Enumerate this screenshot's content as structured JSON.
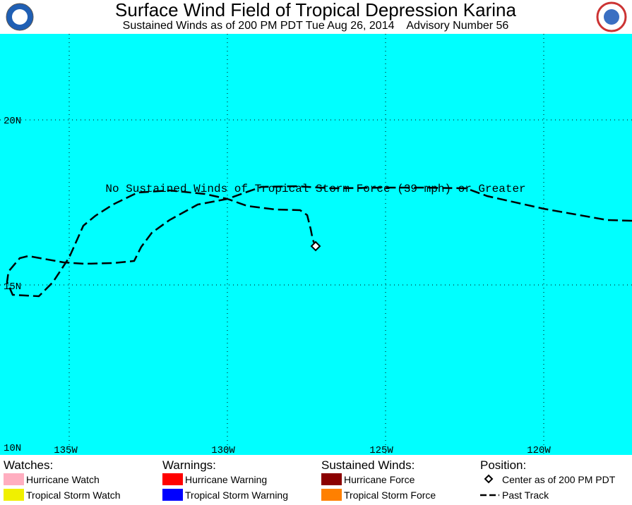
{
  "header": {
    "title": "Surface Wind Field of Tropical Depression Karina",
    "subtitle": "Sustained Winds as of 200 PM PDT Tue Aug 26, 2014    Advisory Number 56"
  },
  "map": {
    "annotation": "No Sustained Winds of Tropical Storm Force (39 mph) or Greater",
    "lat_labels": [
      "20N",
      "15N",
      "10N"
    ],
    "lon_labels": [
      "135W",
      "130W",
      "125W",
      "120W"
    ]
  },
  "legend": {
    "watches": {
      "heading": "Watches:",
      "items": [
        "Hurricane Watch",
        "Tropical Storm Watch"
      ]
    },
    "warnings": {
      "heading": "Warnings:",
      "items": [
        "Hurricane Warning",
        "Tropical Storm Warning"
      ]
    },
    "winds": {
      "heading": "Sustained Winds:",
      "items": [
        "Hurricane Force",
        "Tropical Storm Force"
      ]
    },
    "position": {
      "heading": "Position:",
      "items": [
        "Center as of 200 PM PDT",
        "Past Track"
      ]
    }
  }
}
